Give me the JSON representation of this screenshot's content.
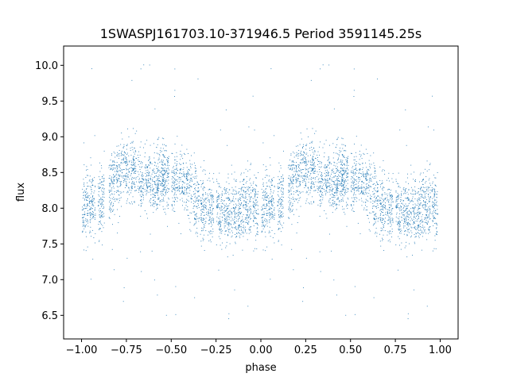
{
  "chart_data": {
    "type": "scatter",
    "title": "1SWASPJ161703.10-371946.5 Period 3591145.25s",
    "xlabel": "phase",
    "ylabel": "flux",
    "xlim": [
      -1.1,
      1.1
    ],
    "ylim": [
      6.17,
      10.27
    ],
    "xticks": [
      -1.0,
      -0.75,
      -0.5,
      -0.25,
      0.0,
      0.25,
      0.5,
      0.75,
      1.0
    ],
    "xtick_labels": [
      "−1.00",
      "−0.75",
      "−0.50",
      "−0.25",
      "0.00",
      "0.25",
      "0.50",
      "0.75",
      "1.00"
    ],
    "yticks": [
      6.5,
      7.0,
      7.5,
      8.0,
      8.5,
      9.0,
      9.5,
      10.0
    ],
    "ytick_labels": [
      "6.5",
      "7.0",
      "7.5",
      "8.0",
      "8.5",
      "9.0",
      "9.5",
      "10.0"
    ],
    "grid": false,
    "marker_color": "#1f77b4",
    "series": [
      {
        "x_range": [
          -1.0,
          1.0
        ],
        "folded_profile_phase": [
          0.0,
          0.05,
          0.1,
          0.15,
          0.2,
          0.25,
          0.3,
          0.35,
          0.4,
          0.45,
          0.5,
          0.55,
          0.6,
          0.65,
          0.7,
          0.75,
          0.8,
          0.85,
          0.9,
          0.95,
          1.0
        ],
        "folded_profile_flux": [
          7.95,
          8.05,
          8.1,
          8.25,
          8.45,
          8.55,
          8.5,
          8.35,
          8.3,
          8.45,
          8.4,
          8.35,
          8.3,
          8.1,
          7.95,
          8.0,
          7.95,
          7.9,
          8.0,
          8.05,
          7.95
        ],
        "scatter_sigma": 0.22,
        "outlier_range": [
          6.35,
          10.05
        ],
        "observing_night_phases": [
          0.02,
          0.06,
          0.11,
          0.17,
          0.21,
          0.25,
          0.29,
          0.33,
          0.37,
          0.41,
          0.44,
          0.47,
          0.52,
          0.56,
          0.6,
          0.64,
          0.68,
          0.72,
          0.77,
          0.81,
          0.85,
          0.89,
          0.93,
          0.97
        ]
      }
    ]
  }
}
